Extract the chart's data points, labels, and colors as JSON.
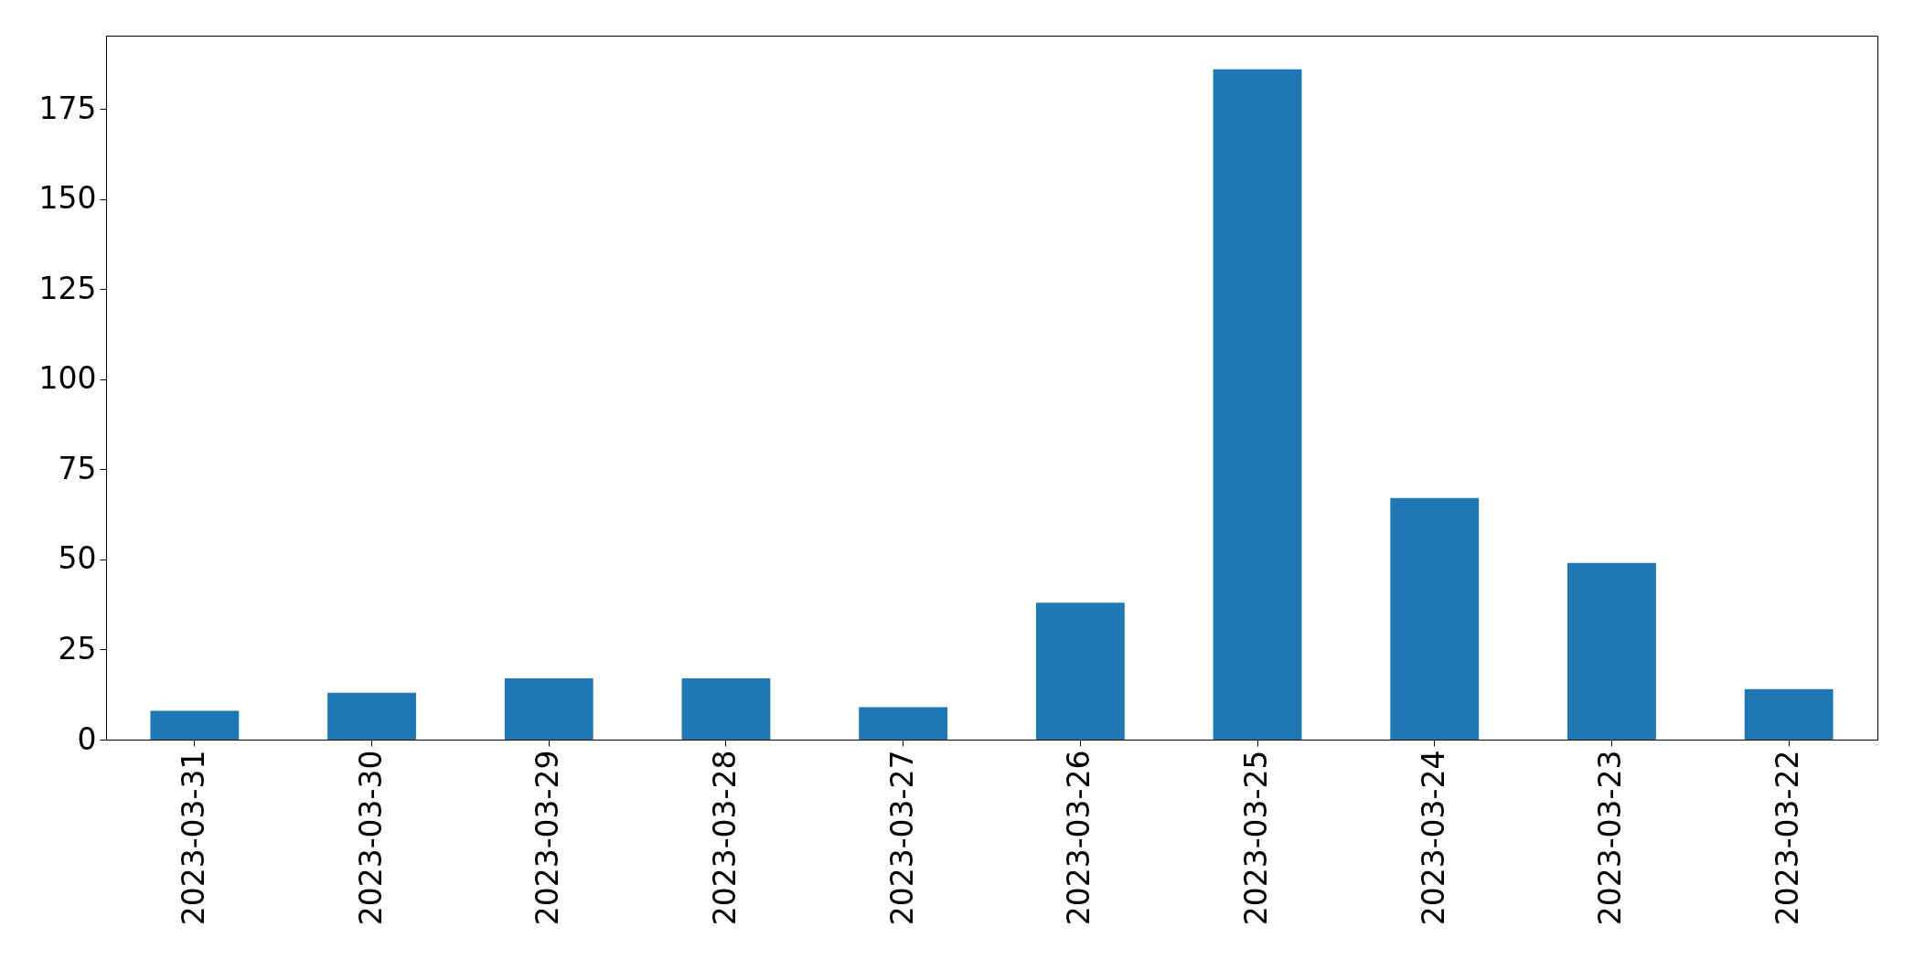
{
  "chart_data": {
    "type": "bar",
    "categories": [
      "2023-03-31",
      "2023-03-30",
      "2023-03-29",
      "2023-03-28",
      "2023-03-27",
      "2023-03-26",
      "2023-03-25",
      "2023-03-24",
      "2023-03-23",
      "2023-03-22"
    ],
    "values": [
      8,
      13,
      17,
      17,
      9,
      38,
      186,
      67,
      49,
      14
    ],
    "color": "#1f77b4",
    "ylim": [
      0,
      195.3
    ],
    "yticks": [
      0,
      25,
      50,
      75,
      100,
      125,
      150,
      175
    ],
    "grid": false
  }
}
